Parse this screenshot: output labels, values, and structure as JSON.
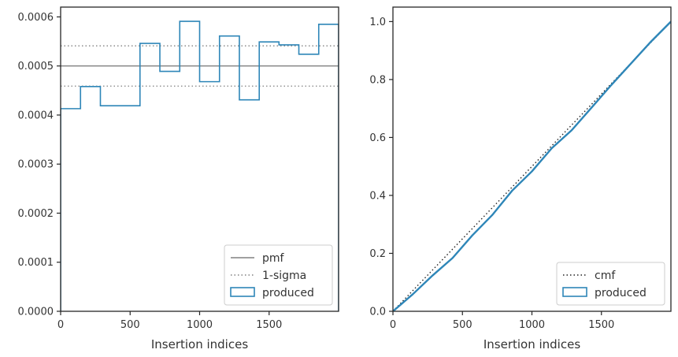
{
  "chart_data": [
    {
      "type": "step",
      "xlabel": "Insertion indices",
      "ylabel": "",
      "xlim": [
        0,
        2000
      ],
      "ylim": [
        0,
        0.00062
      ],
      "xticks": [
        0,
        500,
        1000,
        1500
      ],
      "xtick_labels": [
        "0",
        "500",
        "1000",
        "1500"
      ],
      "yticks": [
        0,
        0.0001,
        0.0002,
        0.0003,
        0.0004,
        0.0005,
        0.0006
      ],
      "ytick_labels": [
        "0.0000",
        "0.0001",
        "0.0002",
        "0.0003",
        "0.0004",
        "0.0005",
        "0.0006"
      ],
      "grid": false,
      "legend_position": "lower-right",
      "reference_lines": [
        {
          "name": "pmf",
          "value": 0.0005,
          "style": "solid",
          "color": "#808080"
        },
        {
          "name": "1-sigma",
          "values": [
            0.000541,
            0.000459
          ],
          "style": "dotted",
          "color": "#808080"
        }
      ],
      "series": [
        {
          "name": "produced",
          "color": "#2e86b8",
          "bin_edges": [
            0,
            143,
            286,
            429,
            571,
            714,
            857,
            1000,
            1143,
            1286,
            1429,
            1571,
            1714,
            1857,
            2000
          ],
          "values": [
            0.000413,
            0.000458,
            0.000419,
            0.000419,
            0.000546,
            0.000489,
            0.000591,
            0.000468,
            0.000561,
            0.000431,
            0.000549,
            0.000543,
            0.000524,
            0.000585
          ]
        }
      ],
      "legend": [
        {
          "label": "pmf",
          "kind": "line",
          "style": "solid",
          "color": "#808080"
        },
        {
          "label": "1-sigma",
          "kind": "line",
          "style": "dotted",
          "color": "#808080"
        },
        {
          "label": "produced",
          "kind": "patch",
          "color": "#2e86b8"
        }
      ]
    },
    {
      "type": "line",
      "xlabel": "Insertion indices",
      "ylabel": "",
      "xlim": [
        0,
        2000
      ],
      "ylim": [
        0,
        1.05
      ],
      "xticks": [
        0,
        500,
        1000,
        1500
      ],
      "xtick_labels": [
        "0",
        "500",
        "1000",
        "1500"
      ],
      "yticks": [
        0,
        0.2,
        0.4,
        0.6,
        0.8,
        1.0
      ],
      "ytick_labels": [
        "0.0",
        "0.2",
        "0.4",
        "0.6",
        "0.8",
        "1.0"
      ],
      "grid": false,
      "legend_position": "lower-right",
      "series": [
        {
          "name": "cmf",
          "style": "dotted",
          "color": "#222222",
          "x": [
            0,
            2000
          ],
          "y": [
            0,
            1.0
          ]
        },
        {
          "name": "produced",
          "style": "solid",
          "color": "#2e86b8",
          "x": [
            0,
            143,
            286,
            429,
            571,
            714,
            857,
            1000,
            1143,
            1286,
            1429,
            1571,
            1714,
            1857,
            2000
          ],
          "y": [
            0,
            0.059,
            0.124,
            0.184,
            0.262,
            0.332,
            0.416,
            0.483,
            0.563,
            0.625,
            0.703,
            0.781,
            0.856,
            0.931,
            1.0
          ]
        }
      ],
      "legend": [
        {
          "label": "cmf",
          "kind": "line",
          "style": "dotted",
          "color": "#222222"
        },
        {
          "label": "produced",
          "kind": "patch",
          "color": "#2e86b8"
        }
      ]
    }
  ]
}
